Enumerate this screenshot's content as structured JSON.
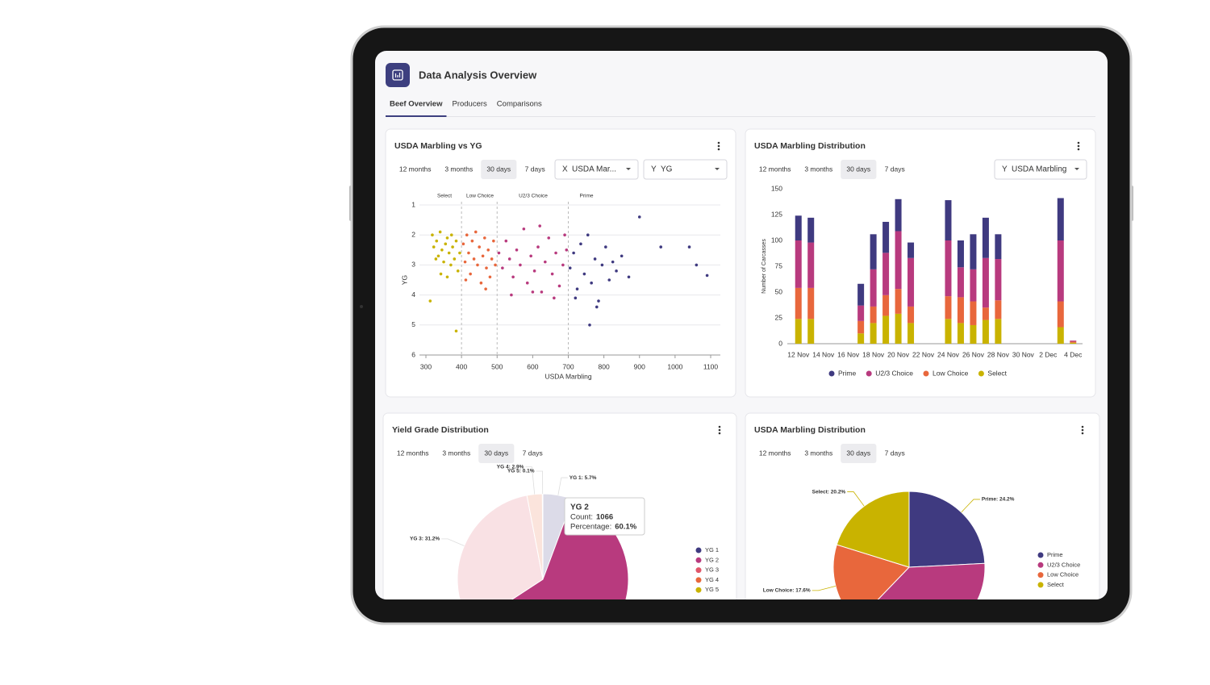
{
  "header": {
    "title": "Data Analysis Overview"
  },
  "tabs": [
    "Beef Overview",
    "Producers",
    "Comparisons"
  ],
  "active_tab": 0,
  "chart_data": [
    {
      "type": "scatter",
      "title": "USDA Marbling vs YG",
      "ranges": [
        "12 months",
        "3 months",
        "30 days",
        "7 days"
      ],
      "active_range": 2,
      "dropdowns": [
        {
          "axis": "X",
          "label": "USDA Mar..."
        },
        {
          "axis": "Y",
          "label": "YG"
        }
      ],
      "x_label": "USDA Marbling",
      "y_label": "YG",
      "xlim": [
        300,
        1100
      ],
      "xticks": [
        300,
        400,
        500,
        600,
        700,
        800,
        900,
        1000,
        1100
      ],
      "ylim": [
        1,
        6
      ],
      "yticks": [
        1,
        2,
        3,
        4,
        5,
        6
      ],
      "y_inverted": true,
      "grid": true,
      "zone_bounds": [
        400,
        500,
        700
      ],
      "series": [
        {
          "name": "Select",
          "color": "#c9b300",
          "x": [
            318,
            322,
            330,
            335,
            340,
            345,
            350,
            355,
            360,
            365,
            370,
            375,
            380,
            385,
            390,
            395,
            342,
            360,
            312,
            385,
            328,
            372
          ],
          "values": [
            2.0,
            2.4,
            2.2,
            2.7,
            1.9,
            2.5,
            2.9,
            2.3,
            2.1,
            2.6,
            3.0,
            2.4,
            2.8,
            2.2,
            3.2,
            2.6,
            3.3,
            3.4,
            4.2,
            5.2,
            2.8,
            2.0
          ]
        },
        {
          "name": "Low Choice",
          "color": "#e8673c",
          "x": [
            405,
            410,
            415,
            420,
            425,
            430,
            435,
            440,
            445,
            450,
            455,
            460,
            465,
            470,
            475,
            480,
            485,
            490,
            495,
            412,
            468
          ],
          "values": [
            2.3,
            2.9,
            2.0,
            2.6,
            3.3,
            2.2,
            2.8,
            1.9,
            3.0,
            2.4,
            3.6,
            2.7,
            2.1,
            3.1,
            2.5,
            3.4,
            2.8,
            2.2,
            3.0,
            3.5,
            3.8
          ]
        },
        {
          "name": "U2/3 Choice",
          "color": "#b83a7e",
          "x": [
            505,
            515,
            525,
            535,
            545,
            555,
            565,
            575,
            585,
            595,
            605,
            615,
            625,
            635,
            645,
            655,
            665,
            675,
            685,
            695,
            540,
            600,
            660,
            620,
            690
          ],
          "values": [
            2.6,
            3.1,
            2.2,
            2.8,
            3.4,
            2.5,
            3.0,
            1.8,
            3.6,
            2.7,
            3.2,
            2.4,
            3.9,
            2.9,
            2.1,
            3.3,
            2.6,
            3.7,
            3.0,
            2.5,
            4.0,
            3.9,
            4.1,
            1.7,
            2.0
          ]
        },
        {
          "name": "Prime",
          "color": "#3f3a80",
          "x": [
            705,
            715,
            725,
            735,
            745,
            755,
            765,
            775,
            785,
            795,
            805,
            815,
            825,
            835,
            850,
            870,
            900,
            760,
            720,
            780,
            1040,
            1060,
            1090,
            960
          ],
          "values": [
            3.1,
            2.6,
            3.8,
            2.3,
            3.3,
            2.0,
            3.6,
            2.8,
            4.2,
            3.0,
            2.4,
            3.5,
            2.9,
            3.2,
            2.7,
            3.4,
            1.4,
            5.0,
            4.1,
            4.4,
            2.4,
            3.0,
            3.35,
            2.4
          ]
        }
      ]
    },
    {
      "type": "stacked_bar",
      "title": "USDA Marbling Distribution",
      "ranges": [
        "12 months",
        "3 months",
        "30 days",
        "7 days"
      ],
      "active_range": 2,
      "dropdowns": [
        {
          "axis": "Y",
          "label": "USDA Marbling"
        }
      ],
      "y_label": "Number of Carcasses",
      "categories": [
        "12 Nov",
        null,
        "14 Nov",
        null,
        "16 Nov",
        null,
        "18 Nov",
        null,
        "20 Nov",
        null,
        "22 Nov",
        null,
        "24 Nov",
        null,
        "26 Nov",
        null,
        "28 Nov",
        null,
        "30 Nov",
        null,
        "2 Dec",
        null,
        "4 Dec"
      ],
      "ylim": [
        0,
        150
      ],
      "yticks": [
        0,
        25,
        50,
        75,
        100,
        125,
        150
      ],
      "legend": "bottom",
      "series": [
        {
          "name": "Prime",
          "color": "#3f3a80",
          "values": [
            24,
            24,
            0,
            0,
            0,
            21,
            34,
            30,
            31,
            15,
            0,
            0,
            39,
            26,
            34,
            39,
            24,
            0,
            0,
            0,
            0,
            41,
            0
          ]
        },
        {
          "name": "U2/3 Choice",
          "color": "#b83a7e",
          "values": [
            46,
            44,
            0,
            0,
            0,
            15,
            36,
            41,
            56,
            47,
            0,
            0,
            54,
            29,
            31,
            48,
            40,
            0,
            0,
            0,
            0,
            59,
            1
          ]
        },
        {
          "name": "Low Choice",
          "color": "#e8673c",
          "values": [
            30,
            30,
            0,
            0,
            0,
            12,
            16,
            20,
            24,
            16,
            0,
            0,
            22,
            25,
            23,
            12,
            18,
            0,
            0,
            0,
            0,
            25,
            1
          ]
        },
        {
          "name": "Select",
          "color": "#c9b300",
          "values": [
            24,
            24,
            0,
            0,
            0,
            10,
            20,
            27,
            29,
            20,
            0,
            0,
            24,
            20,
            18,
            23,
            24,
            0,
            0,
            0,
            0,
            16,
            1
          ]
        }
      ]
    },
    {
      "type": "pie",
      "title": "Yield Grade Distribution",
      "ranges": [
        "12 months",
        "3 months",
        "30 days",
        "7 days"
      ],
      "active_range": 2,
      "categories": [
        "YG 1",
        "YG 2",
        "YG 3",
        "YG 4",
        "YG 5"
      ],
      "values": [
        5.7,
        60.1,
        31.2,
        2.9,
        0.1
      ],
      "value_labels": [
        "YG 1: 5.7%",
        null,
        "YG 3: 31.2%",
        "YG 4: 2.9%",
        "YG 5: 0.1%"
      ],
      "colors": [
        "#3f3a80",
        "#b83a7e",
        "#e0566a",
        "#e8673c",
        "#c9b300"
      ],
      "highlight": 1,
      "tooltip": {
        "title": "YG 2",
        "count_label": "Count:",
        "count": 1066,
        "percentage_label": "Percentage:",
        "percentage": "60.1%"
      }
    },
    {
      "type": "pie",
      "title": "USDA Marbling Distribution",
      "ranges": [
        "12 months",
        "3 months",
        "30 days",
        "7 days"
      ],
      "active_range": 2,
      "categories": [
        "Prime",
        "U2/3 Choice",
        "Low Choice",
        "Select"
      ],
      "values": [
        24.2,
        38.0,
        17.6,
        20.2
      ],
      "value_labels": [
        "Prime: 24.2%",
        null,
        "Low Choice: 17.6%",
        "Select: 20.2%"
      ],
      "colors": [
        "#3f3a80",
        "#b83a7e",
        "#e8673c",
        "#c9b300"
      ]
    }
  ]
}
